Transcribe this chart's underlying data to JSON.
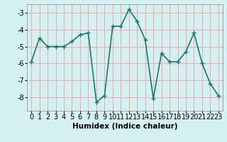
{
  "x": [
    0,
    1,
    2,
    3,
    4,
    5,
    6,
    7,
    8,
    9,
    10,
    11,
    12,
    13,
    14,
    15,
    16,
    17,
    18,
    19,
    20,
    21,
    22,
    23
  ],
  "y": [
    -5.9,
    -4.5,
    -5.0,
    -5.0,
    -5.0,
    -4.7,
    -4.3,
    -4.2,
    -8.3,
    -7.9,
    -3.8,
    -3.8,
    -2.8,
    -3.5,
    -4.6,
    -8.1,
    -5.4,
    -5.9,
    -5.9,
    -5.3,
    -4.2,
    -6.0,
    -7.2,
    -7.9
  ],
  "line_color": "#1a7a6e",
  "marker": "+",
  "bg_color": "#d4f0f0",
  "grid_color": "#e8b0b0",
  "xlabel": "Humidex (Indice chaleur)",
  "ylim": [
    -8.8,
    -2.5
  ],
  "xlim": [
    -0.5,
    23.5
  ],
  "yticks": [
    -8,
    -7,
    -6,
    -5,
    -4,
    -3
  ],
  "xticks": [
    0,
    1,
    2,
    3,
    4,
    5,
    6,
    7,
    8,
    9,
    10,
    11,
    12,
    13,
    14,
    15,
    16,
    17,
    18,
    19,
    20,
    21,
    22,
    23
  ],
  "xlabel_fontsize": 7.5,
  "tick_fontsize": 7,
  "linewidth": 1.2,
  "markersize": 4,
  "figsize": [
    3.2,
    2.0
  ],
  "dpi": 100
}
